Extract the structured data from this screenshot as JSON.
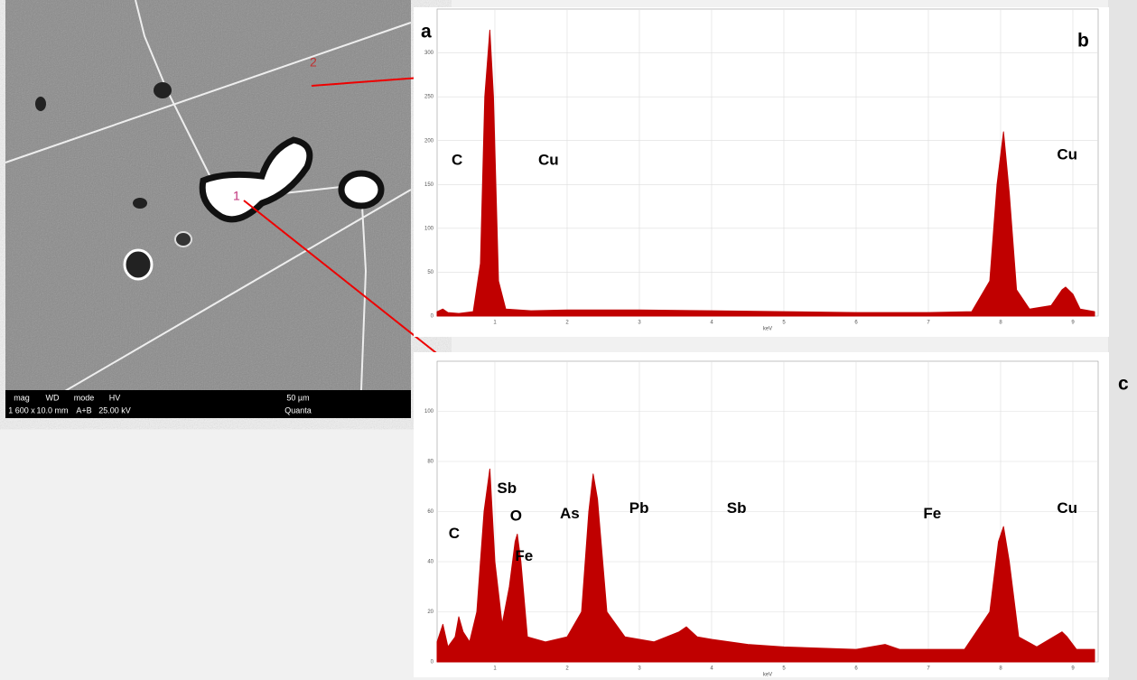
{
  "panel_labels": [
    "a",
    "b",
    "c"
  ],
  "sem_image": {
    "points": [
      "1",
      "2"
    ],
    "info_headers": [
      "mag",
      "WD",
      "mode",
      "HV",
      "50 µm"
    ],
    "info_values": [
      "1 600 x",
      "10.0 mm",
      "A+B",
      "25.00 kV",
      "Quanta"
    ]
  },
  "chart_data": [
    {
      "type": "area",
      "xlabel": "keV",
      "color": "#c00000",
      "x": [
        0.2,
        0.28,
        0.35,
        0.5,
        0.7,
        0.8,
        0.86,
        0.93,
        0.98,
        1.05,
        1.15,
        1.5,
        2,
        3,
        4,
        5,
        6,
        7,
        7.6,
        7.85,
        7.95,
        8.04,
        8.12,
        8.22,
        8.4,
        8.7,
        8.85,
        8.9,
        9.0,
        9.1,
        9.3
      ],
      "series": [
        {
          "values": [
            5,
            8,
            4,
            3,
            5,
            60,
            250,
            326,
            250,
            40,
            8,
            6,
            7,
            7,
            6,
            5,
            4,
            4,
            5,
            40,
            150,
            210,
            140,
            30,
            8,
            12,
            30,
            33,
            25,
            8,
            5
          ]
        }
      ],
      "xlim": [
        0.2,
        9.35
      ],
      "xticks": [
        1,
        2,
        3,
        4,
        5,
        6,
        7,
        8,
        9
      ],
      "ylim": [
        0,
        350
      ],
      "yticks": [
        0,
        50,
        100,
        150,
        200,
        250,
        300
      ],
      "grid": true,
      "annotations": [
        {
          "text": "C",
          "x": 0.4,
          "y": 177
        },
        {
          "text": "Cu",
          "x": 1.6,
          "y": 177
        },
        {
          "text": "Cu",
          "x": 8.78,
          "y": 183
        }
      ]
    },
    {
      "type": "area",
      "xlabel": "keV",
      "color": "#c00000",
      "x": [
        0.2,
        0.28,
        0.35,
        0.45,
        0.5,
        0.56,
        0.65,
        0.75,
        0.85,
        0.93,
        1.0,
        1.1,
        1.2,
        1.28,
        1.31,
        1.36,
        1.45,
        1.7,
        2.0,
        2.2,
        2.3,
        2.36,
        2.42,
        2.55,
        2.8,
        3.2,
        3.55,
        3.65,
        3.8,
        4.0,
        4.5,
        5,
        6,
        6.4,
        6.6,
        7,
        7.5,
        7.85,
        7.97,
        8.04,
        8.12,
        8.25,
        8.5,
        8.85,
        8.92,
        9.05,
        9.3
      ],
      "series": [
        {
          "values": [
            8,
            15,
            6,
            10,
            18,
            12,
            8,
            20,
            60,
            77,
            40,
            15,
            30,
            48,
            51,
            40,
            10,
            8,
            10,
            20,
            60,
            75,
            65,
            20,
            10,
            8,
            12,
            14,
            10,
            9,
            7,
            6,
            5,
            7,
            5,
            5,
            5,
            20,
            48,
            54,
            40,
            10,
            6,
            12,
            10,
            5,
            5
          ]
        }
      ],
      "xlim": [
        0.2,
        9.35
      ],
      "xticks": [
        1,
        2,
        3,
        4,
        5,
        6,
        7,
        8,
        9
      ],
      "ylim": [
        0,
        120
      ],
      "yticks": [
        0,
        20,
        40,
        60,
        80,
        100
      ],
      "grid": true,
      "annotations": [
        {
          "text": "C",
          "x": 0.36,
          "y": 51
        },
        {
          "text": "Sb",
          "x": 1.03,
          "y": 69
        },
        {
          "text": "O",
          "x": 1.21,
          "y": 58
        },
        {
          "text": "Fe",
          "x": 1.28,
          "y": 42
        },
        {
          "text": "As",
          "x": 1.9,
          "y": 59
        },
        {
          "text": "Pb",
          "x": 2.86,
          "y": 61
        },
        {
          "text": "Sb",
          "x": 4.21,
          "y": 61
        },
        {
          "text": "Fe",
          "x": 6.93,
          "y": 59
        },
        {
          "text": "Cu",
          "x": 8.78,
          "y": 61
        }
      ]
    }
  ]
}
